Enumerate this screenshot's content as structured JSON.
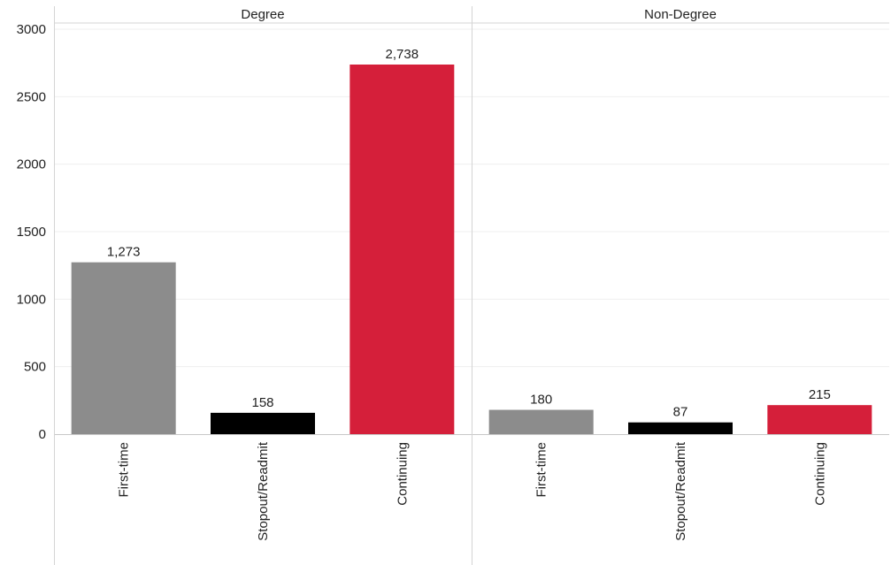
{
  "colors": {
    "First-time": "#8c8c8c",
    "Stopout/Readmit": "#000000",
    "Continuing": "#d51f3a",
    "grid": "#efefef",
    "divider": "#d4d4d4"
  },
  "chart_data": {
    "type": "bar",
    "ylim": [
      0,
      3000
    ],
    "y_ticks": [
      "0",
      "500",
      "1000",
      "1500",
      "2000",
      "2500",
      "3000"
    ],
    "categories": [
      "First-time",
      "Stopout/Readmit",
      "Continuing"
    ],
    "panels": [
      {
        "name": "Degree",
        "values": [
          1273,
          158,
          2738
        ],
        "labels": [
          "1,273",
          "158",
          "2,738"
        ]
      },
      {
        "name": "Non-Degree",
        "values": [
          180,
          87,
          215
        ],
        "labels": [
          "180",
          "87",
          "215"
        ]
      }
    ],
    "grid": true,
    "legend": "none"
  }
}
